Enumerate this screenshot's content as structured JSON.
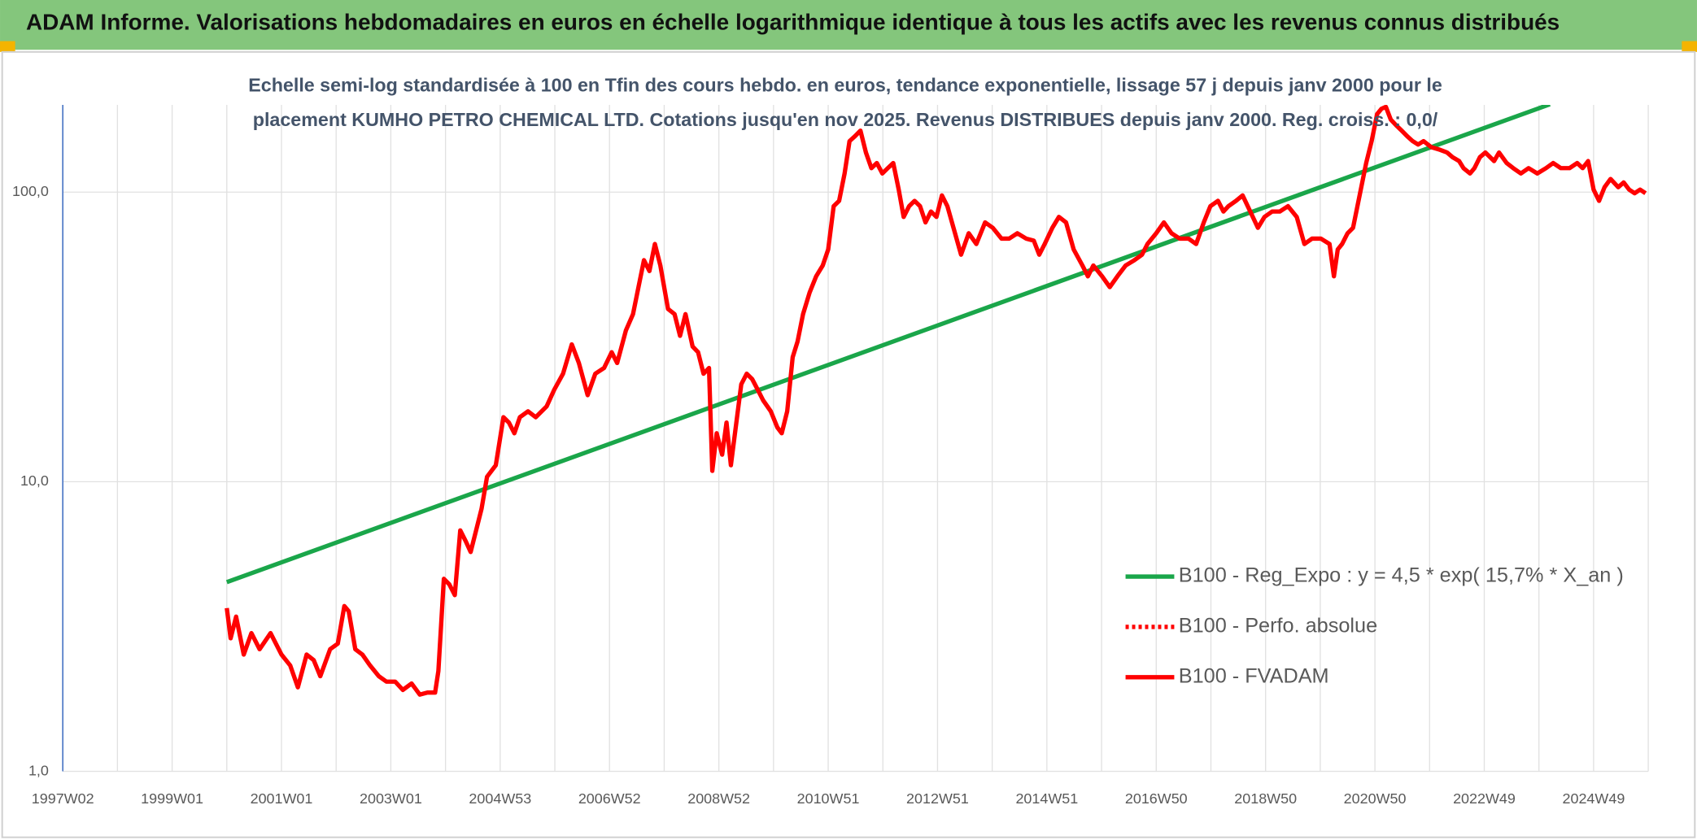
{
  "chart_data": {
    "type": "line",
    "title": "ADAM Informe. Valorisations hebdomadaires en euros en échelle logarithmique identique à tous les actifs avec les revenus connus distribués",
    "subtitle": [
      "Echelle semi-log standardisée à 100 en Tfin des cours hebdo. en euros, tendance exponentielle, lissage 57 j depuis janv 2000 pour le",
      "placement KUMHO PETRO CHEMICAL LTD. Cotations jusqu'en nov 2025. Revenus DISTRIBUES depuis janv 2000. Reg. croiss. : 0,0/"
    ],
    "log_y": true,
    "xlim": [
      1997,
      2026
    ],
    "ylim": [
      1,
      200
    ],
    "yticks": [
      {
        "value": 1,
        "label": "1,0"
      },
      {
        "value": 10,
        "label": "10,0"
      },
      {
        "value": 100,
        "label": "100,0"
      }
    ],
    "xticks": [
      {
        "value": 1997,
        "label": "1997W02"
      },
      {
        "value": 1999,
        "label": "1999W01"
      },
      {
        "value": 2001,
        "label": "2001W01"
      },
      {
        "value": 2003,
        "label": "2003W01"
      },
      {
        "value": 2005,
        "label": "2004W53"
      },
      {
        "value": 2007,
        "label": "2006W52"
      },
      {
        "value": 2009,
        "label": "2008W52"
      },
      {
        "value": 2011,
        "label": "2010W51"
      },
      {
        "value": 2013,
        "label": "2012W51"
      },
      {
        "value": 2015,
        "label": "2014W51"
      },
      {
        "value": 2017,
        "label": "2016W50"
      },
      {
        "value": 2019,
        "label": "2018W50"
      },
      {
        "value": 2021,
        "label": "2020W50"
      },
      {
        "value": 2023,
        "label": "2022W49"
      },
      {
        "value": 2025,
        "label": "2024W49"
      }
    ],
    "x_minor_grid": [
      1998,
      2000,
      2002,
      2004,
      2006,
      2008,
      2010,
      2012,
      2014,
      2016,
      2018,
      2020,
      2022,
      2024,
      2026
    ],
    "grid": true,
    "legend_position": "lower right",
    "series": [
      {
        "name": "B100 - Reg_Expo : y = 4,5 * exp( 15,7% *  X_an )",
        "color": "#1aa64a",
        "line_style": "solid",
        "x": [
          2000.0,
          2024.2
        ],
        "values": [
          4.5,
          201
        ]
      },
      {
        "name": "B100 - Perfo. absolue",
        "color": "#ff0000",
        "line_style": "dotted",
        "x": [],
        "values": []
      },
      {
        "name": "B100 - FVADAM",
        "color": "#ff0000",
        "line_style": "solid",
        "x": [
          2000.0,
          2000.07,
          2000.17,
          2000.31,
          2000.45,
          2000.6,
          2000.8,
          2001.0,
          2001.16,
          2001.3,
          2001.46,
          2001.59,
          2001.71,
          2001.89,
          2002.03,
          2002.15,
          2002.23,
          2002.35,
          2002.48,
          2002.62,
          2002.78,
          2002.92,
          2003.08,
          2003.22,
          2003.38,
          2003.53,
          2003.67,
          2003.81,
          2003.87,
          2003.97,
          2004.07,
          2004.17,
          2004.27,
          2004.37,
          2004.46,
          2004.56,
          2004.66,
          2004.76,
          2004.92,
          2005.06,
          2005.16,
          2005.26,
          2005.36,
          2005.51,
          2005.65,
          2005.85,
          2005.99,
          2006.15,
          2006.31,
          2006.44,
          2006.6,
          2006.74,
          2006.9,
          2007.04,
          2007.14,
          2007.3,
          2007.43,
          2007.53,
          2007.63,
          2007.73,
          2007.83,
          2007.93,
          2008.07,
          2008.19,
          2008.29,
          2008.39,
          2008.52,
          2008.62,
          2008.72,
          2008.82,
          2008.88,
          2008.96,
          2009.06,
          2009.14,
          2009.22,
          2009.32,
          2009.41,
          2009.51,
          2009.61,
          2009.71,
          2009.81,
          2009.95,
          2010.07,
          2010.15,
          2010.25,
          2010.35,
          2010.44,
          2010.54,
          2010.66,
          2010.78,
          2010.9,
          2011.0,
          2011.1,
          2011.2,
          2011.3,
          2011.39,
          2011.49,
          2011.59,
          2011.69,
          2011.79,
          2011.89,
          2011.99,
          2012.09,
          2012.19,
          2012.29,
          2012.38,
          2012.48,
          2012.58,
          2012.68,
          2012.78,
          2012.88,
          2012.98,
          2013.08,
          2013.18,
          2013.32,
          2013.43,
          2013.57,
          2013.71,
          2013.87,
          2014.01,
          2014.17,
          2014.31,
          2014.46,
          2014.62,
          2014.76,
          2014.86,
          2014.96,
          2015.1,
          2015.22,
          2015.35,
          2015.49,
          2015.65,
          2015.75,
          2015.85,
          2016.01,
          2016.15,
          2016.29,
          2016.44,
          2016.6,
          2016.74,
          2016.84,
          2017.0,
          2017.14,
          2017.28,
          2017.43,
          2017.59,
          2017.73,
          2017.87,
          2017.99,
          2018.13,
          2018.23,
          2018.32,
          2018.46,
          2018.58,
          2018.72,
          2018.86,
          2018.98,
          2019.12,
          2019.26,
          2019.41,
          2019.57,
          2019.71,
          2019.85,
          2020.01,
          2020.17,
          2020.25,
          2020.32,
          2020.4,
          2020.5,
          2020.6,
          2020.72,
          2020.84,
          2020.94,
          2021.04,
          2021.12,
          2021.2,
          2021.29,
          2021.39,
          2021.49,
          2021.59,
          2021.69,
          2021.79,
          2021.89,
          2022.03,
          2022.19,
          2022.32,
          2022.42,
          2022.54,
          2022.62,
          2022.74,
          2022.82,
          2022.92,
          2023.02,
          2023.18,
          2023.27,
          2023.41,
          2023.53,
          2023.67,
          2023.81,
          2023.97,
          2024.13,
          2024.26,
          2024.4,
          2024.56,
          2024.7,
          2024.8,
          2024.9,
          2025.0,
          2025.1,
          2025.2,
          2025.31,
          2025.45,
          2025.55,
          2025.65,
          2025.75,
          2025.85,
          2025.95
        ],
        "values": [
          3.66,
          2.88,
          3.42,
          2.53,
          3.0,
          2.64,
          3.0,
          2.53,
          2.32,
          1.95,
          2.53,
          2.42,
          2.13,
          2.64,
          2.76,
          3.72,
          3.57,
          2.64,
          2.53,
          2.32,
          2.13,
          2.04,
          2.04,
          1.91,
          2.01,
          1.84,
          1.87,
          1.87,
          2.22,
          4.62,
          4.42,
          4.06,
          6.79,
          6.23,
          5.72,
          6.79,
          8.07,
          10.4,
          11.4,
          16.7,
          16.0,
          14.7,
          16.7,
          17.5,
          16.7,
          18.2,
          20.8,
          23.6,
          29.8,
          25.7,
          19.9,
          23.6,
          24.7,
          28.0,
          25.7,
          33.3,
          37.9,
          47.0,
          58.2,
          53.4,
          66.2,
          55.8,
          39.5,
          37.9,
          31.9,
          37.9,
          29.3,
          28.0,
          23.6,
          24.7,
          10.9,
          14.7,
          12.4,
          16.0,
          11.4,
          16.0,
          21.7,
          23.6,
          22.6,
          20.8,
          19.1,
          17.5,
          15.4,
          14.7,
          17.5,
          26.9,
          30.5,
          37.9,
          45.0,
          51.2,
          55.8,
          63.4,
          89.4,
          93.3,
          116,
          150,
          156,
          163,
          137,
          121,
          126,
          116,
          121,
          126,
          102,
          82.1,
          89.4,
          93.3,
          89.4,
          78.6,
          85.7,
          82.1,
          97.4,
          89.4,
          72.1,
          60.8,
          72.1,
          66.2,
          78.6,
          75.3,
          69.1,
          69.1,
          72.1,
          69.1,
          68.0,
          60.8,
          66.2,
          75.3,
          82.1,
          78.6,
          63.4,
          55.8,
          51.2,
          55.8,
          51.2,
          47.0,
          51.2,
          55.8,
          58.2,
          60.8,
          66.2,
          72.1,
          78.6,
          72.1,
          69.1,
          69.1,
          66.2,
          78.6,
          89.4,
          93.3,
          85.7,
          89.4,
          93.3,
          97.4,
          85.7,
          75.3,
          82.1,
          85.7,
          85.7,
          89.4,
          82.1,
          66.2,
          69.1,
          69.1,
          66.2,
          51.2,
          63.4,
          66.2,
          72.1,
          75.3,
          97.4,
          126,
          150,
          186,
          194,
          197,
          178,
          170,
          163,
          156,
          150,
          146,
          150,
          143,
          140,
          137,
          132,
          128,
          121,
          116,
          121,
          132,
          137,
          128,
          137,
          126,
          121,
          116,
          121,
          116,
          121,
          126,
          121,
          121,
          126,
          121,
          128,
          102,
          93.3,
          104,
          111,
          104,
          108,
          102,
          99.1,
          102,
          99.1
        ]
      }
    ]
  }
}
